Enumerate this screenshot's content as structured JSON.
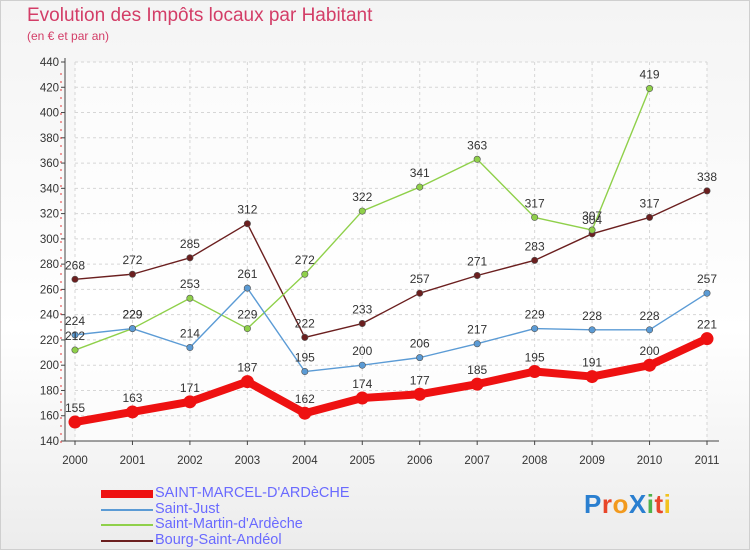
{
  "title": "Evolution des Impôts locaux par Habitant",
  "subtitle": "(en € et par an)",
  "logo": {
    "text": "ProXiti",
    "colors": [
      "#2a7fd0",
      "#e8462a",
      "#f29a1e",
      "#2a7fd0",
      "#4fb24a",
      "#e8462a",
      "#f2c21e"
    ]
  },
  "chart_data": {
    "type": "line",
    "title": "Evolution des Impôts locaux par Habitant",
    "subtitle": "(en € et par an)",
    "xlabel": "",
    "ylabel": "",
    "x": [
      "2000",
      "2001",
      "2002",
      "2003",
      "2004",
      "2005",
      "2006",
      "2007",
      "2008",
      "2009",
      "2010",
      "2011"
    ],
    "ylim": [
      140,
      440
    ],
    "yticks": [
      140,
      160,
      180,
      200,
      220,
      240,
      260,
      280,
      300,
      320,
      340,
      360,
      380,
      400,
      420,
      440
    ],
    "grid": true,
    "legend": "bottom-left",
    "series": [
      {
        "name": "SAINT-MARCEL-D'ARDèCHE",
        "color": "#ee1111",
        "values": [
          155,
          163,
          171,
          187,
          162,
          174,
          177,
          185,
          195,
          191,
          200,
          221
        ],
        "labels": [
          "155",
          "163",
          "171",
          "187",
          "162",
          "174",
          "177",
          "185",
          "195",
          "191",
          "200",
          "221"
        ]
      },
      {
        "name": "Saint-Just",
        "color": "#5b9bd5",
        "values": [
          224,
          229,
          214,
          261,
          195,
          200,
          206,
          217,
          229,
          228,
          228,
          257
        ],
        "labels": [
          "224",
          "229",
          "214",
          "261",
          "195",
          "200",
          "206",
          "217",
          "229",
          "228",
          "228",
          "257"
        ]
      },
      {
        "name": "Saint-Martin-d'Ardèche",
        "color": "#8fd04a",
        "values": [
          212,
          229,
          253,
          229,
          272,
          322,
          341,
          363,
          317,
          307,
          419,
          null
        ],
        "labels": [
          "212",
          "229",
          "253",
          "229",
          "272",
          "322",
          "341",
          "363",
          "317",
          "307",
          "419",
          null
        ]
      },
      {
        "name": "Bourg-Saint-Andéol",
        "color": "#6b1f1f",
        "values": [
          268,
          272,
          285,
          312,
          222,
          233,
          257,
          271,
          283,
          304,
          317,
          338
        ],
        "labels": [
          "268",
          "272",
          "285",
          "312",
          "222",
          "233",
          "257",
          "271",
          "283",
          "304",
          "317",
          "338"
        ]
      }
    ]
  }
}
